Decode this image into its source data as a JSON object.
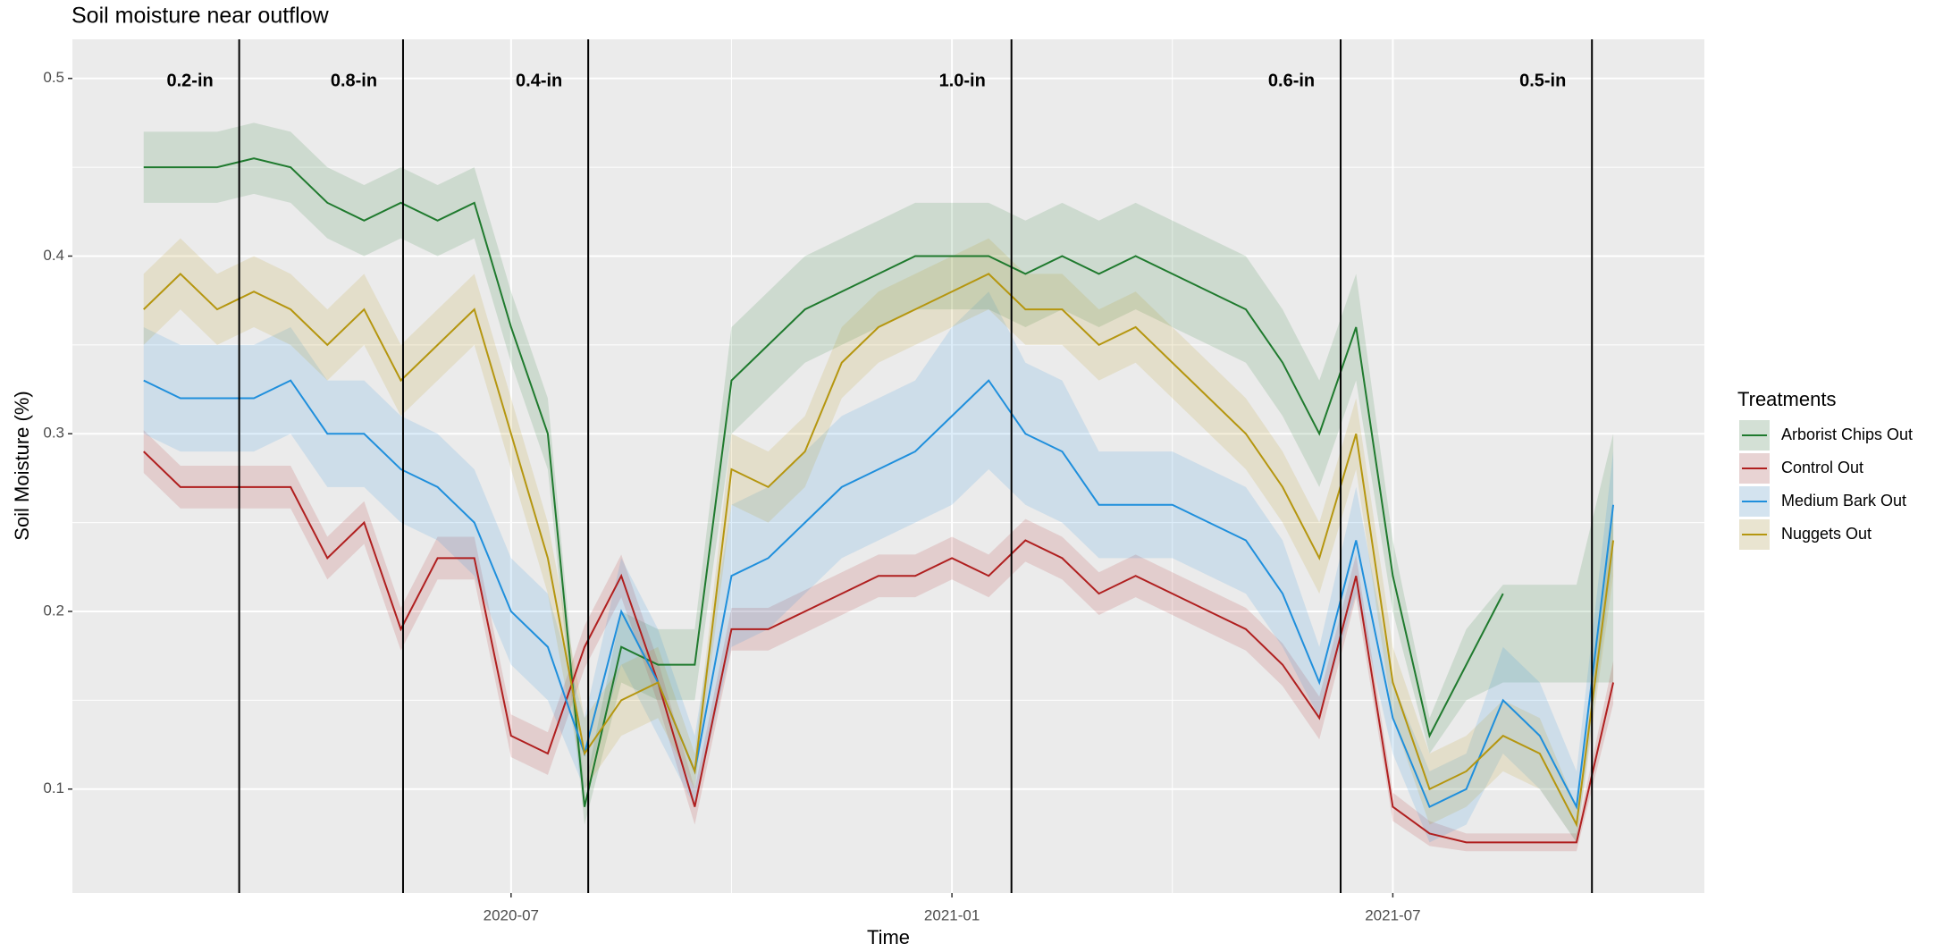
{
  "chart_data": {
    "type": "line",
    "title": "Soil moisture near outflow",
    "x_label": "Time",
    "y_label": "Soil Moisture (%)",
    "legend_title": "Treatments",
    "legend": "right",
    "grid": true,
    "x": [
      1.0,
      1.5,
      2.0,
      2.5,
      3.0,
      3.5,
      4.0,
      4.5,
      5.0,
      5.5,
      6.0,
      6.5,
      7.0,
      7.5,
      8.0,
      8.5,
      9.0,
      9.5,
      10.0,
      10.5,
      11.0,
      11.5,
      12.0,
      12.5,
      13.0,
      13.5,
      14.0,
      14.5,
      15.0,
      15.5,
      16.0,
      16.5,
      17.0,
      17.5,
      18.0,
      18.5,
      19.0,
      19.5,
      20.0,
      20.5,
      21.0
    ],
    "xlim": [
      0.03,
      22.24
    ],
    "xticks": [
      {
        "value": 6,
        "label": "2020-07"
      },
      {
        "value": 12,
        "label": "2021-01"
      },
      {
        "value": 18,
        "label": "2021-07"
      }
    ],
    "ylim": [
      0.0415,
      0.522
    ],
    "yticks": [
      0.1,
      0.2,
      0.3,
      0.4,
      0.5
    ],
    "annotations": [
      {
        "x": 2.3,
        "label": "0.2-in"
      },
      {
        "x": 4.53,
        "label": "0.8-in"
      },
      {
        "x": 7.05,
        "label": "0.4-in"
      },
      {
        "x": 12.81,
        "label": "1.0-in"
      },
      {
        "x": 17.29,
        "label": "0.6-in"
      },
      {
        "x": 20.71,
        "label": "0.5-in"
      }
    ],
    "series": [
      {
        "name": "Arborist Chips Out",
        "color": "#1f7a2e",
        "values": [
          0.45,
          0.45,
          0.45,
          0.455,
          0.45,
          0.43,
          0.42,
          0.43,
          0.42,
          0.43,
          0.36,
          0.3,
          0.09,
          0.18,
          0.17,
          0.17,
          0.33,
          0.35,
          0.37,
          0.38,
          0.39,
          0.4,
          0.4,
          0.4,
          0.39,
          0.4,
          0.39,
          0.4,
          0.39,
          0.38,
          0.37,
          0.34,
          0.3,
          0.36,
          0.22,
          0.13,
          0.17,
          0.21,
          null,
          null,
          0.26
        ],
        "lower": [
          0.43,
          0.43,
          0.43,
          0.435,
          0.43,
          0.41,
          0.4,
          0.41,
          0.4,
          0.41,
          0.34,
          0.28,
          0.08,
          0.16,
          0.15,
          0.15,
          0.3,
          0.32,
          0.34,
          0.35,
          0.36,
          0.37,
          0.37,
          0.37,
          0.36,
          0.37,
          0.36,
          0.37,
          0.36,
          0.35,
          0.34,
          0.31,
          0.27,
          0.33,
          0.2,
          0.12,
          0.15,
          0.16,
          0.16,
          0.16,
          0.16
        ],
        "upper": [
          0.47,
          0.47,
          0.47,
          0.475,
          0.47,
          0.45,
          0.44,
          0.45,
          0.44,
          0.45,
          0.38,
          0.32,
          0.1,
          0.2,
          0.19,
          0.19,
          0.36,
          0.38,
          0.4,
          0.41,
          0.42,
          0.43,
          0.43,
          0.43,
          0.42,
          0.43,
          0.42,
          0.43,
          0.42,
          0.41,
          0.4,
          0.37,
          0.33,
          0.39,
          0.24,
          0.14,
          0.19,
          0.215,
          0.215,
          0.215,
          0.3
        ]
      },
      {
        "name": "Control Out",
        "color": "#b01f1f",
        "values": [
          0.29,
          0.27,
          0.27,
          0.27,
          0.27,
          0.23,
          0.25,
          0.19,
          0.23,
          0.23,
          0.13,
          0.12,
          0.18,
          0.22,
          0.16,
          0.09,
          0.19,
          0.19,
          0.2,
          0.21,
          0.22,
          0.22,
          0.23,
          0.22,
          0.24,
          0.23,
          0.21,
          0.22,
          0.21,
          0.2,
          0.19,
          0.17,
          0.14,
          0.22,
          0.09,
          0.075,
          0.07,
          0.07,
          0.07,
          0.07,
          0.16
        ],
        "lower": [
          0.278,
          0.258,
          0.258,
          0.258,
          0.258,
          0.218,
          0.238,
          0.178,
          0.218,
          0.218,
          0.118,
          0.108,
          0.168,
          0.208,
          0.148,
          0.08,
          0.178,
          0.178,
          0.188,
          0.198,
          0.208,
          0.208,
          0.218,
          0.208,
          0.228,
          0.218,
          0.198,
          0.208,
          0.198,
          0.188,
          0.178,
          0.158,
          0.128,
          0.208,
          0.082,
          0.068,
          0.065,
          0.065,
          0.065,
          0.065,
          0.148
        ],
        "upper": [
          0.302,
          0.282,
          0.282,
          0.282,
          0.282,
          0.242,
          0.262,
          0.202,
          0.242,
          0.242,
          0.142,
          0.132,
          0.192,
          0.232,
          0.172,
          0.1,
          0.202,
          0.202,
          0.212,
          0.222,
          0.232,
          0.232,
          0.242,
          0.232,
          0.252,
          0.242,
          0.222,
          0.232,
          0.222,
          0.212,
          0.202,
          0.182,
          0.152,
          0.232,
          0.098,
          0.082,
          0.075,
          0.075,
          0.075,
          0.075,
          0.172
        ]
      },
      {
        "name": "Medium Bark Out",
        "color": "#1f8fdc",
        "values": [
          0.33,
          0.32,
          0.32,
          0.32,
          0.33,
          0.3,
          0.3,
          0.28,
          0.27,
          0.25,
          0.2,
          0.18,
          0.12,
          0.2,
          0.16,
          0.11,
          0.22,
          0.23,
          0.25,
          0.27,
          0.28,
          0.29,
          0.31,
          0.33,
          0.3,
          0.29,
          0.26,
          0.26,
          0.26,
          0.25,
          0.24,
          0.21,
          0.16,
          0.24,
          0.14,
          0.09,
          0.1,
          0.15,
          0.13,
          0.09,
          0.26
        ],
        "lower": [
          0.3,
          0.29,
          0.29,
          0.29,
          0.3,
          0.27,
          0.27,
          0.25,
          0.24,
          0.22,
          0.17,
          0.15,
          0.1,
          0.17,
          0.13,
          0.09,
          0.18,
          0.19,
          0.21,
          0.23,
          0.24,
          0.25,
          0.26,
          0.28,
          0.26,
          0.25,
          0.23,
          0.23,
          0.23,
          0.22,
          0.21,
          0.18,
          0.14,
          0.21,
          0.12,
          0.07,
          0.08,
          0.12,
          0.1,
          0.07,
          0.23
        ],
        "upper": [
          0.36,
          0.35,
          0.35,
          0.35,
          0.36,
          0.33,
          0.33,
          0.31,
          0.3,
          0.28,
          0.23,
          0.21,
          0.14,
          0.23,
          0.19,
          0.13,
          0.26,
          0.27,
          0.29,
          0.31,
          0.32,
          0.33,
          0.36,
          0.38,
          0.34,
          0.33,
          0.29,
          0.29,
          0.29,
          0.28,
          0.27,
          0.24,
          0.18,
          0.27,
          0.16,
          0.11,
          0.12,
          0.18,
          0.16,
          0.11,
          0.29
        ]
      },
      {
        "name": "Nuggets Out",
        "color": "#b5960f",
        "values": [
          0.37,
          0.39,
          0.37,
          0.38,
          0.37,
          0.35,
          0.37,
          0.33,
          0.35,
          0.37,
          0.3,
          0.23,
          0.12,
          0.15,
          0.16,
          0.11,
          0.28,
          0.27,
          0.29,
          0.34,
          0.36,
          0.37,
          0.38,
          0.39,
          0.37,
          0.37,
          0.35,
          0.36,
          0.34,
          0.32,
          0.3,
          0.27,
          0.23,
          0.3,
          0.16,
          0.1,
          0.11,
          0.13,
          0.12,
          0.08,
          0.24
        ],
        "lower": [
          0.35,
          0.37,
          0.35,
          0.36,
          0.35,
          0.33,
          0.35,
          0.31,
          0.33,
          0.35,
          0.28,
          0.21,
          0.1,
          0.13,
          0.14,
          0.1,
          0.26,
          0.25,
          0.27,
          0.32,
          0.34,
          0.35,
          0.36,
          0.37,
          0.35,
          0.35,
          0.33,
          0.34,
          0.32,
          0.3,
          0.28,
          0.25,
          0.21,
          0.28,
          0.14,
          0.08,
          0.09,
          0.11,
          0.1,
          0.07,
          0.22
        ],
        "upper": [
          0.39,
          0.41,
          0.39,
          0.4,
          0.39,
          0.37,
          0.39,
          0.35,
          0.37,
          0.39,
          0.32,
          0.25,
          0.14,
          0.17,
          0.18,
          0.12,
          0.3,
          0.29,
          0.31,
          0.36,
          0.38,
          0.39,
          0.4,
          0.41,
          0.39,
          0.39,
          0.37,
          0.38,
          0.36,
          0.34,
          0.32,
          0.29,
          0.25,
          0.32,
          0.18,
          0.12,
          0.13,
          0.15,
          0.14,
          0.09,
          0.26
        ]
      }
    ]
  }
}
